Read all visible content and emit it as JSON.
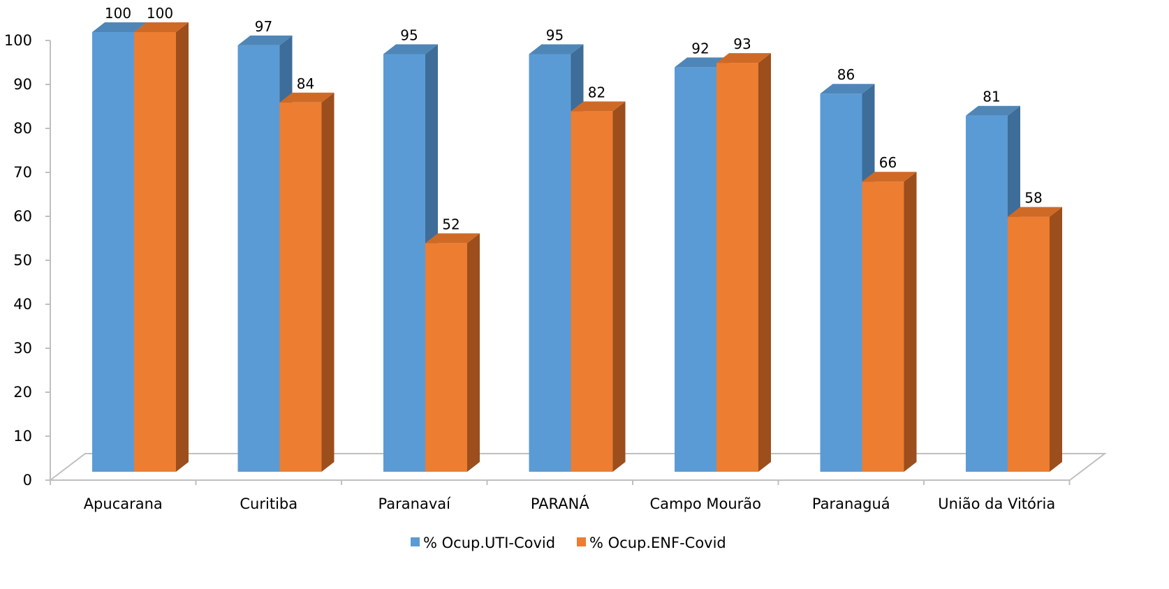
{
  "chart_data": {
    "type": "bar",
    "style": "3d-clustered-column",
    "title": "",
    "xlabel": "",
    "ylabel": "",
    "ylim": [
      0,
      100
    ],
    "yticks": [
      0,
      10,
      20,
      30,
      40,
      50,
      60,
      70,
      80,
      90,
      100
    ],
    "categories": [
      "Apucarana",
      "Curitiba",
      "Paranavaí",
      "PARANÁ",
      "Campo Mourão",
      "Paranaguá",
      "União da Vitória"
    ],
    "series": [
      {
        "name": "% Ocup.UTI-Covid",
        "values": [
          100,
          97,
          95,
          95,
          92,
          86,
          81
        ],
        "color": "#5b9bd5",
        "side_color": "#3d6d98",
        "top_color": "#4f86b8"
      },
      {
        "name": "% Ocup.ENF-Covid",
        "values": [
          100,
          84,
          52,
          82,
          93,
          66,
          58
        ],
        "color": "#ed7d31",
        "side_color": "#9c4e1c",
        "top_color": "#cf6a26"
      }
    ],
    "data_labels": true,
    "gridlines": false,
    "legend_position": "bottom"
  }
}
